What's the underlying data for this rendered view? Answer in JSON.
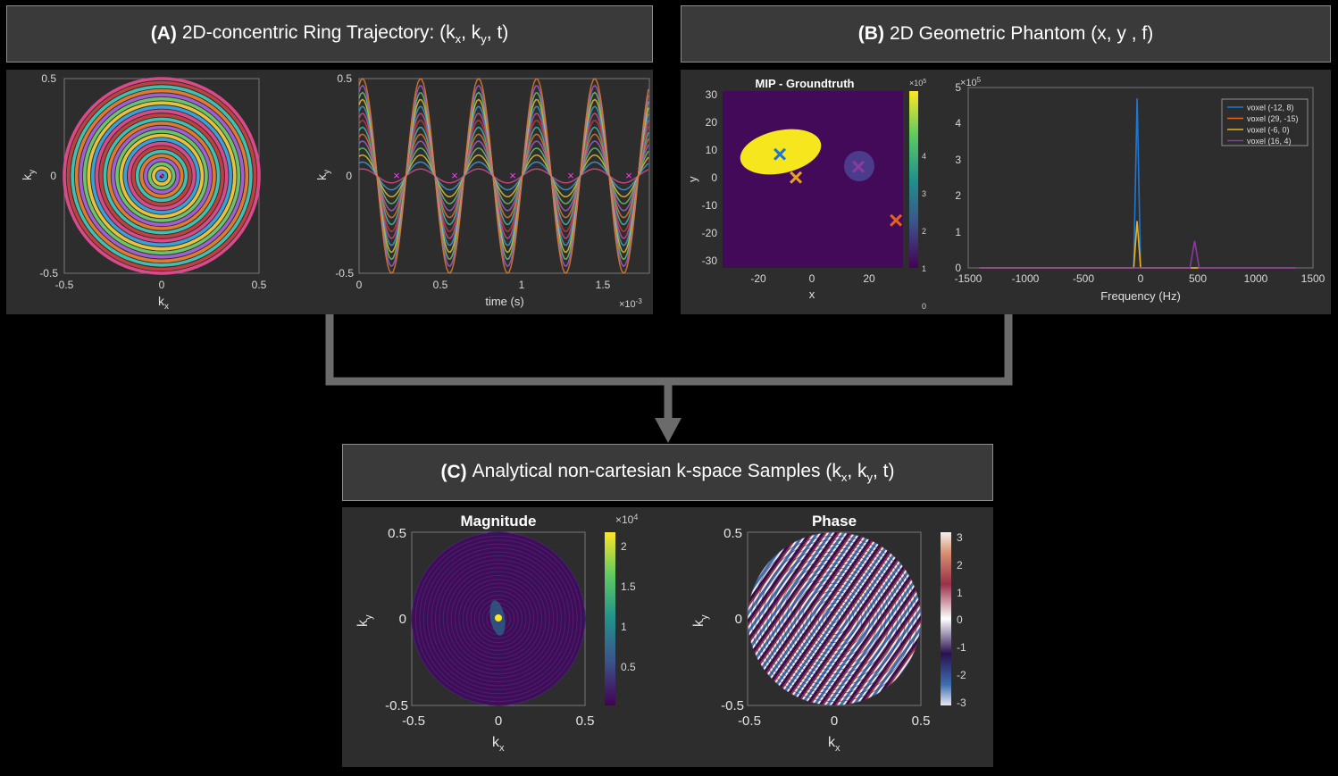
{
  "panelA": {
    "title_bold": "(A)",
    "title_pre": "2D-concentric Ring Trajectory: (k",
    "title_sub1": "x",
    "title_mid1": ", k",
    "title_sub2": "y",
    "title_end": ", t)",
    "ring_plot": {
      "xlabel": "k",
      "xlabel_sub": "x",
      "ylabel": "k",
      "ylabel_sub": "y",
      "xticks": [
        "-0.5",
        "0",
        "0.5"
      ],
      "yticks": [
        "0.5",
        "0",
        "-0.5"
      ]
    },
    "time_plot": {
      "xlabel": "time (s)",
      "ylabel": "k",
      "ylabel_sub": "y",
      "xticks": [
        "0",
        "0.5",
        "1",
        "1.5"
      ],
      "yticks": [
        "0.5",
        "0",
        "-0.5"
      ],
      "exponent": "×10",
      "exponent_power": "-3"
    }
  },
  "panelB": {
    "title_bold": "(B)",
    "title_text": "2D Geometric Phantom  (x, y , f)",
    "mip": {
      "title": "MIP - Groundtruth",
      "xlabel": "x",
      "ylabel": "y",
      "xticks": [
        "-20",
        "0",
        "20"
      ],
      "yticks": [
        "30",
        "20",
        "10",
        "0",
        "-10",
        "-20",
        "-30"
      ],
      "colorbar_ticks": [
        "4",
        "3",
        "2",
        "1",
        "0"
      ],
      "colorbar_exponent": "×10",
      "colorbar_exponent_power": "5"
    },
    "spectrum": {
      "xlabel": "Frequency (Hz)",
      "xticks": [
        "-1500",
        "-1000",
        "-500",
        "0",
        "500",
        "1000",
        "1500"
      ],
      "yticks": [
        "5",
        "4",
        "3",
        "2",
        "1",
        "0"
      ],
      "exponent": "×10",
      "exponent_power": "5",
      "legend": [
        "voxel (-12, 8)",
        "voxel (29, -15)",
        "voxel (-6, 0)",
        "voxel (16, 4)"
      ],
      "colors": [
        "#1f77d4",
        "#e0641e",
        "#e8b020",
        "#8a3aa0"
      ]
    }
  },
  "panelC": {
    "title_bold": "(C)",
    "title_pre": "Analytical non-cartesian k-space Samples (k",
    "title_sub1": "x",
    "title_mid1": ", k",
    "title_sub2": "y",
    "title_end": ", t)",
    "magnitude": {
      "title": "Magnitude",
      "xlabel": "k",
      "xlabel_sub": "x",
      "ylabel": "k",
      "ylabel_sub": "y",
      "xticks": [
        "-0.5",
        "0",
        "0.5"
      ],
      "yticks": [
        "0.5",
        "0",
        "-0.5"
      ],
      "colorbar_ticks": [
        "2",
        "1.5",
        "1",
        "0.5"
      ],
      "colorbar_exponent": "×10",
      "colorbar_exponent_power": "4"
    },
    "phase": {
      "title": "Phase",
      "xlabel": "k",
      "xlabel_sub": "x",
      "ylabel": "k",
      "ylabel_sub": "y",
      "xticks": [
        "-0.5",
        "0",
        "0.5"
      ],
      "yticks": [
        "0.5",
        "0",
        "-0.5"
      ],
      "colorbar_ticks": [
        "3",
        "2",
        "1",
        "0",
        "-1",
        "-2",
        "-3"
      ]
    }
  },
  "chart_data": [
    {
      "type": "line",
      "name": "spectrum",
      "xlabel": "Frequency (Hz)",
      "xlim": [
        -1500,
        1500
      ],
      "ylim": [
        0,
        500000
      ],
      "series": [
        {
          "name": "voxel (-12, 8)",
          "x": [
            -1400,
            -60,
            -30,
            0,
            1350
          ],
          "y": [
            0,
            0,
            470000,
            0,
            0
          ]
        },
        {
          "name": "voxel (29, -15)",
          "x": [
            -1400,
            1350
          ],
          "y": [
            0,
            0
          ]
        },
        {
          "name": "voxel (-6, 0)",
          "x": [
            -1400,
            -60,
            -30,
            0,
            500
          ],
          "y": [
            0,
            0,
            130000,
            0,
            0
          ]
        },
        {
          "name": "voxel (16, 4)",
          "x": [
            -1400,
            430,
            470,
            510,
            1350
          ],
          "y": [
            0,
            0,
            75000,
            0,
            0
          ]
        }
      ]
    }
  ]
}
